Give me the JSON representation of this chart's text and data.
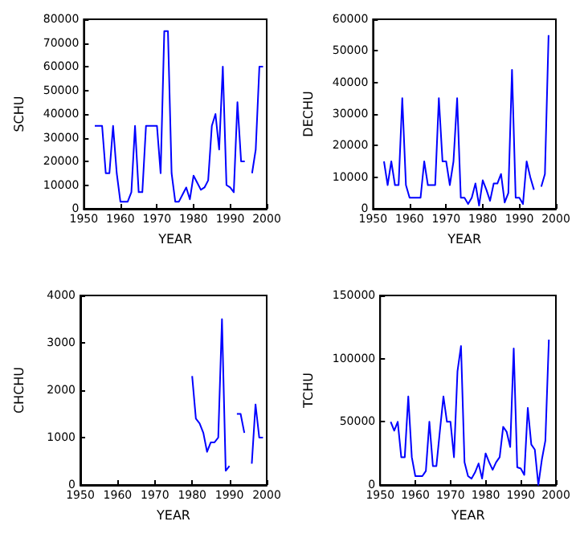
{
  "chart_data": [
    {
      "type": "line",
      "xlabel": "YEAR",
      "ylabel": "SCHU",
      "xlim": [
        1950,
        2000
      ],
      "xticks": [
        1950,
        1960,
        1970,
        1980,
        1990,
        2000
      ],
      "ylim": [
        0,
        80000
      ],
      "yticks": [
        0,
        10000,
        20000,
        30000,
        40000,
        50000,
        60000,
        70000,
        80000
      ],
      "x": [
        1953,
        1954,
        1955,
        1956,
        1957,
        1958,
        1959,
        1960,
        1961,
        1962,
        1963,
        1964,
        1965,
        1966,
        1967,
        1968,
        1969,
        1970,
        1971,
        1972,
        1973,
        1974,
        1975,
        1976,
        1977,
        1978,
        1979,
        1980,
        1981,
        1982,
        1983,
        1984,
        1985,
        1986,
        1987,
        1988,
        1989,
        1990,
        1991,
        1992,
        1993,
        1994,
        1995,
        1996,
        1997,
        1998,
        1999
      ],
      "series": [
        {
          "color": "#0000ff",
          "values": [
            35000,
            35000,
            35000,
            15000,
            15000,
            35000,
            15000,
            3000,
            3000,
            3000,
            7000,
            35000,
            7000,
            7000,
            35000,
            35000,
            35000,
            35000,
            15000,
            75000,
            75000,
            15000,
            3000,
            3000,
            6000,
            9000,
            4000,
            14000,
            11000,
            8000,
            9000,
            12000,
            35000,
            40000,
            25000,
            60000,
            10000,
            9000,
            7000,
            45000,
            20000,
            20000,
            null,
            15000,
            25000,
            60000,
            60000
          ]
        }
      ]
    },
    {
      "type": "line",
      "xlabel": "YEAR",
      "ylabel": "DECHU",
      "xlim": [
        1950,
        2000
      ],
      "xticks": [
        1950,
        1960,
        1970,
        1980,
        1990,
        2000
      ],
      "ylim": [
        0,
        60000
      ],
      "yticks": [
        0,
        10000,
        20000,
        30000,
        40000,
        50000,
        60000
      ],
      "x": [
        1953,
        1954,
        1955,
        1956,
        1957,
        1958,
        1959,
        1960,
        1961,
        1962,
        1963,
        1964,
        1965,
        1966,
        1967,
        1968,
        1969,
        1970,
        1971,
        1972,
        1973,
        1974,
        1975,
        1976,
        1977,
        1978,
        1979,
        1980,
        1981,
        1982,
        1983,
        1984,
        1985,
        1986,
        1987,
        1988,
        1989,
        1990,
        1991,
        1992,
        1993,
        1994,
        1995,
        1996,
        1997,
        1998
      ],
      "series": [
        {
          "color": "#0000ff",
          "values": [
            15000,
            7500,
            15000,
            7500,
            7500,
            35000,
            7500,
            3500,
            3500,
            3500,
            3500,
            15000,
            7500,
            7500,
            7500,
            35000,
            15000,
            15000,
            7500,
            15000,
            35000,
            3500,
            3500,
            1500,
            3500,
            8000,
            1000,
            9000,
            6000,
            2500,
            8000,
            8000,
            11000,
            2000,
            5000,
            44000,
            3500,
            3500,
            1500,
            15000,
            10000,
            6000,
            null,
            7000,
            11000,
            55000
          ]
        }
      ]
    },
    {
      "type": "line",
      "xlabel": "YEAR",
      "ylabel": "CHCHU",
      "xlim": [
        1950,
        2000
      ],
      "xticks": [
        1950,
        1960,
        1970,
        1980,
        1990,
        2000
      ],
      "ylim": [
        0,
        4000
      ],
      "yticks": [
        0,
        1000,
        2000,
        3000,
        4000
      ],
      "x": [
        1980,
        1981,
        1982,
        1983,
        1984,
        1985,
        1986,
        1987,
        1988,
        1989,
        1990,
        1991,
        1992,
        1993,
        1994,
        1995,
        1996,
        1997,
        1998,
        1999
      ],
      "series": [
        {
          "color": "#0000ff",
          "values": [
            2300,
            1400,
            1300,
            1100,
            700,
            900,
            900,
            1000,
            3500,
            300,
            400,
            null,
            1500,
            1500,
            1100,
            null,
            450,
            1700,
            1000,
            1000
          ]
        }
      ]
    },
    {
      "type": "line",
      "xlabel": "YEAR",
      "ylabel": "TCHU",
      "xlim": [
        1950,
        2000
      ],
      "xticks": [
        1950,
        1960,
        1970,
        1980,
        1990,
        2000
      ],
      "ylim": [
        0,
        150000
      ],
      "yticks": [
        0,
        50000,
        100000,
        150000
      ],
      "x": [
        1953,
        1954,
        1955,
        1956,
        1957,
        1958,
        1959,
        1960,
        1961,
        1962,
        1963,
        1964,
        1965,
        1966,
        1967,
        1968,
        1969,
        1970,
        1971,
        1972,
        1973,
        1974,
        1975,
        1976,
        1977,
        1978,
        1979,
        1980,
        1981,
        1982,
        1983,
        1984,
        1985,
        1986,
        1987,
        1988,
        1989,
        1990,
        1991,
        1992,
        1993,
        1994,
        1995,
        1996,
        1997,
        1998
      ],
      "series": [
        {
          "color": "#0000ff",
          "values": [
            50000,
            43000,
            50000,
            22000,
            22000,
            70000,
            22000,
            7000,
            7000,
            7000,
            11000,
            50000,
            15000,
            15000,
            43000,
            70000,
            50000,
            50000,
            22000,
            90000,
            110000,
            18000,
            7000,
            5000,
            10000,
            17000,
            5000,
            25000,
            18000,
            12000,
            18000,
            22000,
            46000,
            42000,
            30000,
            108000,
            14000,
            13000,
            8000,
            61000,
            32000,
            28000,
            0,
            20000,
            35000,
            115000
          ]
        }
      ]
    }
  ]
}
